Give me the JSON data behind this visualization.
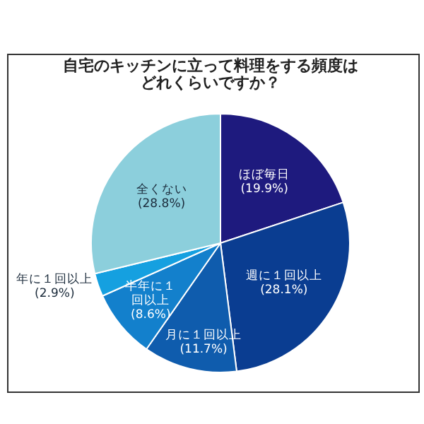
{
  "chart_data": {
    "type": "pie",
    "title": "自宅のキッチンに立って料理をする頻度はどれくらいですか？",
    "categories": [
      "ほぼ毎日",
      "週に１回以上",
      "月に１回以上",
      "半年に１回以上",
      "年に１回以上",
      "全くない"
    ],
    "values": [
      19.9,
      28.1,
      11.7,
      8.6,
      2.9,
      28.8
    ],
    "value_labels": [
      "(19.9%)",
      "(28.1%)",
      "(11.7%)",
      "(8.6%)",
      "(2.9%)",
      "(28.8%)"
    ],
    "colors": [
      "#1e1a7e",
      "#0a3d91",
      "#0f5cad",
      "#1380cc",
      "#15a0e0",
      "#8ccfdc"
    ],
    "legend": false
  }
}
